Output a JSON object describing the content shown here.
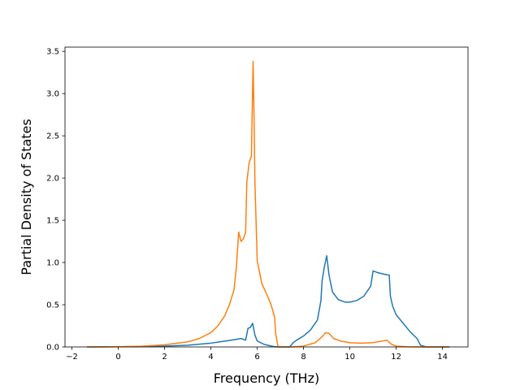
{
  "chart_data": {
    "type": "line",
    "title": "",
    "xlabel": "Frequency (THz)",
    "ylabel": "Partial Density of States",
    "xlim": [
      -2.3,
      15.1
    ],
    "ylim": [
      0,
      3.55
    ],
    "xticks": [
      -2,
      0,
      2,
      4,
      6,
      8,
      10,
      12,
      14
    ],
    "xtick_labels": [
      "−2",
      "0",
      "2",
      "4",
      "6",
      "8",
      "10",
      "12",
      "14"
    ],
    "yticks": [
      0,
      0.5,
      1.0,
      1.5,
      2.0,
      2.5,
      3.0,
      3.5
    ],
    "ytick_labels": [
      "0.0",
      "0.5",
      "1.0",
      "1.5",
      "2.0",
      "2.5",
      "3.0",
      "3.5"
    ],
    "grid": false,
    "legend": "none",
    "series": [
      {
        "color": "#1f77b4",
        "x": [
          -1.35,
          1.0,
          2.0,
          3.0,
          4.0,
          4.5,
          5.0,
          5.3,
          5.5,
          5.6,
          5.7,
          5.8,
          5.9,
          6.0,
          6.3,
          6.7,
          6.9,
          7.4,
          7.55,
          7.7,
          8.0,
          8.3,
          8.6,
          8.75,
          8.8,
          8.9,
          9.0,
          9.1,
          9.25,
          9.5,
          9.8,
          10.0,
          10.3,
          10.6,
          10.9,
          11.0,
          11.2,
          11.5,
          11.7,
          11.75,
          11.85,
          12.0,
          12.3,
          12.6,
          12.9,
          13.05,
          13.3,
          14.3
        ],
        "y": [
          0.0,
          0.005,
          0.01,
          0.02,
          0.045,
          0.065,
          0.085,
          0.1,
          0.08,
          0.22,
          0.23,
          0.28,
          0.14,
          0.07,
          0.03,
          0.005,
          0.0,
          0.0,
          0.05,
          0.08,
          0.13,
          0.2,
          0.32,
          0.55,
          0.78,
          0.95,
          1.08,
          0.85,
          0.65,
          0.56,
          0.53,
          0.53,
          0.55,
          0.6,
          0.72,
          0.9,
          0.88,
          0.86,
          0.85,
          0.6,
          0.48,
          0.38,
          0.28,
          0.18,
          0.1,
          0.02,
          0.0,
          0.0
        ]
      },
      {
        "color": "#ff7f0e",
        "x": [
          -1.35,
          0.0,
          1.0,
          2.0,
          3.0,
          3.5,
          4.0,
          4.3,
          4.6,
          4.8,
          5.0,
          5.1,
          5.2,
          5.3,
          5.4,
          5.5,
          5.55,
          5.65,
          5.75,
          5.82,
          5.85,
          5.9,
          6.0,
          6.2,
          6.4,
          6.6,
          6.75,
          6.8,
          6.9,
          7.5,
          8.0,
          8.5,
          8.8,
          8.95,
          9.1,
          9.3,
          9.6,
          10.0,
          10.5,
          11.0,
          11.6,
          11.8,
          12.0,
          12.5,
          13.0,
          14.3
        ],
        "y": [
          0.0,
          0.002,
          0.008,
          0.025,
          0.06,
          0.1,
          0.17,
          0.25,
          0.37,
          0.5,
          0.68,
          0.95,
          1.36,
          1.25,
          1.28,
          1.36,
          1.95,
          2.18,
          2.26,
          3.38,
          2.95,
          1.95,
          1.02,
          0.75,
          0.63,
          0.5,
          0.35,
          0.15,
          0.0,
          0.0,
          0.01,
          0.05,
          0.12,
          0.17,
          0.16,
          0.1,
          0.07,
          0.05,
          0.045,
          0.05,
          0.08,
          0.03,
          0.01,
          0.002,
          0.0,
          0.0
        ]
      }
    ]
  }
}
